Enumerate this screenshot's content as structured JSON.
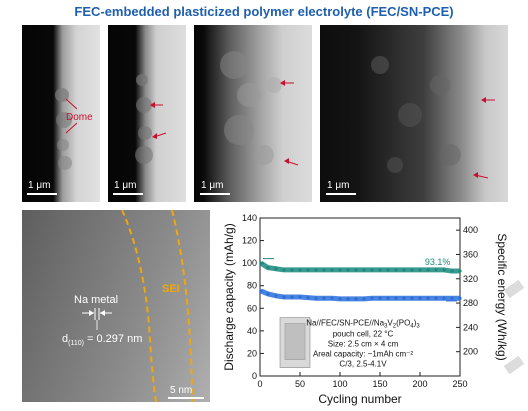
{
  "header": {
    "title": "FEC-embedded plasticized polymer electrolyte (FEC/SN-PCE)"
  },
  "sem_panels": [
    {
      "scale_label": "1 μm",
      "annotation": "Dome"
    },
    {
      "scale_label": "1 μm"
    },
    {
      "scale_label": "1 μm"
    },
    {
      "scale_label": "1 μm"
    }
  ],
  "tem_panel": {
    "na_label": "Na metal",
    "d_main": "d",
    "d_sub": "(110)",
    "d_value": " = 0.297 nm",
    "sei_label": "SEI",
    "scale_label": "5 nm"
  },
  "colors": {
    "title": "#1f5fae",
    "teal": "#1a8a7e",
    "blue": "#2a6edc",
    "orange": "#f2a60c",
    "arrow_red": "#c8102e"
  },
  "chart_data": {
    "type": "scatter",
    "xlabel": "Cycling number",
    "ylabel_left": "Discharge capacity (mAh/g)",
    "ylabel_right": "Specific energy (Wh/kg)",
    "xlim": [
      0,
      250
    ],
    "ylim_left": [
      0,
      140
    ],
    "ylim_right": [
      160,
      420
    ],
    "x_ticks": [
      0,
      50,
      100,
      150,
      200,
      250
    ],
    "y_left_ticks": [
      0,
      20,
      40,
      60,
      80,
      100,
      120,
      140
    ],
    "y_right_ticks": [
      200,
      240,
      280,
      320,
      360,
      400
    ],
    "series": [
      {
        "axis": "left",
        "color": "#1a8a7e",
        "x": [
          1,
          10,
          20,
          30,
          40,
          50,
          60,
          70,
          80,
          90,
          100,
          110,
          120,
          130,
          140,
          150,
          160,
          170,
          180,
          190,
          200,
          210,
          220,
          230,
          240,
          250
        ],
        "y": [
          100,
          96,
          95,
          94,
          94,
          94,
          94,
          94,
          94,
          94,
          94,
          94,
          94,
          94,
          94,
          94,
          94,
          94,
          94,
          94,
          94,
          94,
          94,
          94,
          93,
          93
        ]
      },
      {
        "axis": "right",
        "color": "#2a6edc",
        "x": [
          1,
          10,
          20,
          30,
          40,
          50,
          60,
          70,
          80,
          90,
          100,
          110,
          120,
          130,
          140,
          150,
          160,
          170,
          180,
          190,
          200,
          210,
          220,
          230,
          240,
          250
        ],
        "y": [
          300,
          295,
          292,
          290,
          290,
          290,
          289,
          288,
          288,
          288,
          287,
          287,
          287,
          287,
          288,
          288,
          288,
          288,
          288,
          288,
          288,
          288,
          288,
          288,
          288,
          288
        ]
      }
    ],
    "annotation": "93.1%",
    "inset": {
      "line1_pre": "Na//FEC/SN-PCE//Na",
      "line1_sub1": "3",
      "line1_mid": "V",
      "line1_sub2": "2",
      "line1_mid2": "(PO",
      "line1_sub3": "4",
      "line1_end": ")",
      "line1_sub4": "3",
      "line2": "pouch cell, 22 °C",
      "line3": "Size:  2.5 cm × 4 cm",
      "line4": "Areal capacity: ~1mAh cm⁻²",
      "line5": "C/3, 2.5-4.1V"
    }
  }
}
